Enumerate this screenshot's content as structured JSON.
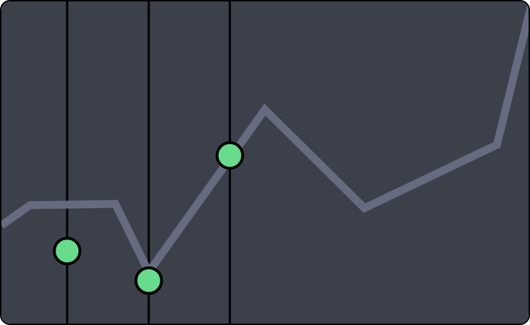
{
  "colors": {
    "panel_background": "#3c404b",
    "panel_border": "#000000",
    "line": "#676b80",
    "marker_fill": "#68db8d",
    "marker_stroke": "#000000",
    "guide_line": "#000000"
  },
  "chart_data": {
    "type": "line",
    "title": "",
    "xlabel": "",
    "ylabel": "",
    "grid": false,
    "xlim": [
      0,
      100
    ],
    "ylim": [
      0,
      100
    ],
    "series": [
      {
        "x": [
          0,
          5.4,
          21.5,
          27.8,
          49.7,
          68.5,
          93.5,
          100
        ],
        "y": [
          31.1,
          37.3,
          37.7,
          16.7,
          66.7,
          36.4,
          55.9,
          99.1
        ]
      }
    ],
    "highlighted_points": [
      {
        "x": 12.4,
        "y": 23.2
      },
      {
        "x": 27.8,
        "y": 14.1
      },
      {
        "x": 43.1,
        "y": 52.6
      }
    ]
  }
}
